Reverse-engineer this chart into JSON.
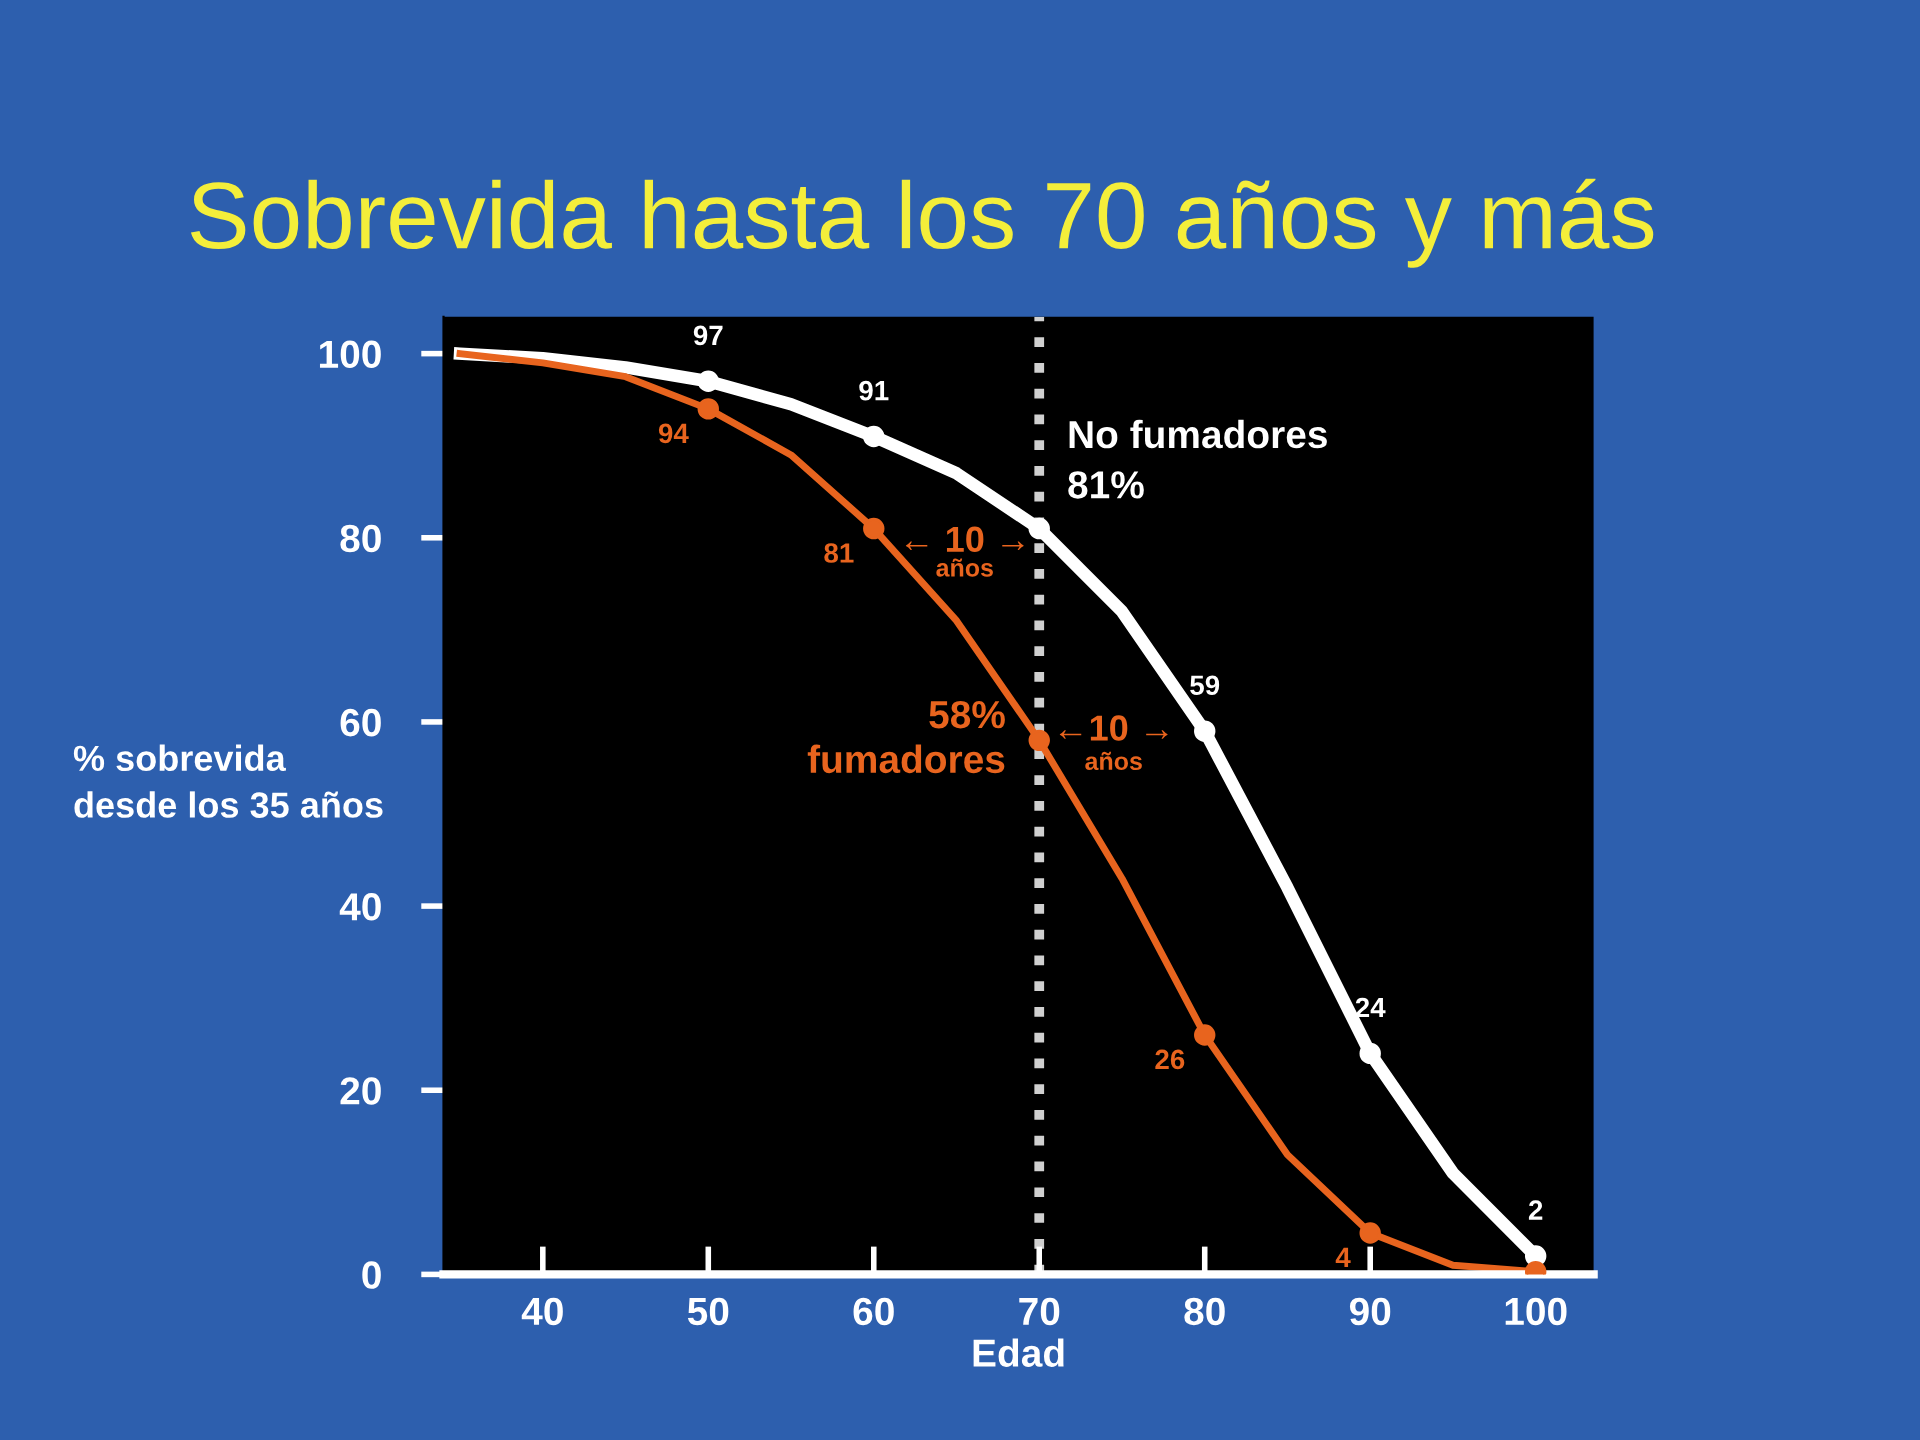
{
  "chart_data": {
    "type": "line",
    "title": "Sobrevida hasta los 70 años y más",
    "xlabel": "Edad",
    "ylabel": "% sobrevida\ndesde los 35 años",
    "xlim": [
      34,
      103.5
    ],
    "ylim": [
      0,
      104
    ],
    "xticks": [
      40,
      50,
      60,
      70,
      80,
      90,
      100
    ],
    "yticks": [
      0,
      20,
      40,
      60,
      80,
      100
    ],
    "grid": false,
    "legend": false,
    "series": [
      {
        "color": "#ffffff",
        "x": [
          35,
          40,
          45,
          50,
          55,
          60,
          65,
          70,
          75,
          80,
          85,
          90,
          95,
          100
        ],
        "values": [
          100,
          99.5,
          98.5,
          97,
          94.5,
          91,
          87,
          81,
          72,
          59,
          42,
          24,
          11,
          2
        ]
      },
      {
        "color": "#e8641e",
        "x": [
          35,
          40,
          45,
          50,
          55,
          60,
          65,
          70,
          75,
          80,
          85,
          90,
          95,
          100
        ],
        "values": [
          100,
          99,
          97.5,
          94,
          89,
          81,
          71,
          58,
          43,
          26,
          13,
          4.5,
          1,
          0.3
        ]
      },
      {
        "type": "scatter",
        "color": "#ffffff",
        "marker": "circle",
        "x": [
          50,
          60,
          70,
          80,
          90,
          100
        ],
        "values": [
          97,
          91,
          81,
          59,
          24,
          2
        ],
        "value_labels": [
          "97",
          "91",
          null,
          "59",
          "24",
          "2"
        ]
      },
      {
        "type": "scatter",
        "color": "#e8641e",
        "marker": "circle",
        "x": [
          50,
          60,
          70,
          80,
          90,
          100
        ],
        "values": [
          94,
          81,
          58,
          26,
          4.5,
          0.3
        ],
        "value_labels": [
          "94",
          "81",
          null,
          "26",
          "4",
          null
        ]
      }
    ],
    "ref_lines": [
      {
        "axis": "x",
        "value": 70,
        "label": null,
        "color": "#d0d0d0",
        "line_style": "dotted"
      }
    ],
    "annotations": [
      {
        "text": "No fumadores\n81%",
        "x": 70,
        "y": 81
      },
      {
        "text": "58%\nfumadores",
        "x": 70,
        "y": 58
      },
      "← 10 →",
      "años",
      "←10 →",
      "años"
    ]
  }
}
